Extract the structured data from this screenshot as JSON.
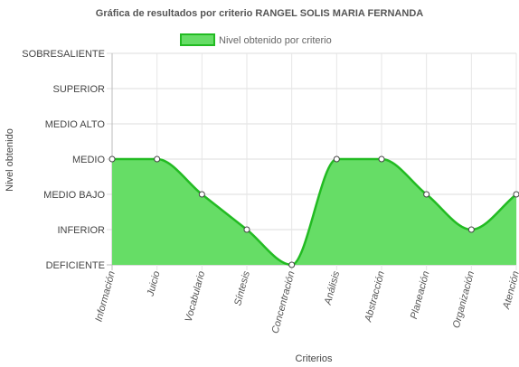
{
  "chart_data": {
    "type": "area",
    "title": "Gráfica de resultados por criterio RANGEL  SOLIS MARIA FERNANDA",
    "xlabel": "Criterios",
    "ylabel": "Nivel obtenido",
    "y_levels": [
      "DEFICIENTE",
      "INFERIOR",
      "MEDIO BAJO",
      "MEDIO",
      "MEDIO ALTO",
      "SUPERIOR",
      "SOBRESALIENTE"
    ],
    "ylim": [
      0,
      6
    ],
    "categories": [
      "Información",
      "Juicio",
      "Vocabulario",
      "Síntesis",
      "Concentración",
      "Análisis",
      "Abstracción",
      "Planeación",
      "Organización",
      "Atención"
    ],
    "series": [
      {
        "name": "Nivel obtenido por criterio",
        "values": [
          3,
          3,
          2,
          1,
          0,
          3,
          3,
          2,
          1,
          2
        ],
        "color": "#66dd66",
        "border_color": "#22bb22"
      }
    ],
    "legend_position": "top",
    "grid": true
  }
}
